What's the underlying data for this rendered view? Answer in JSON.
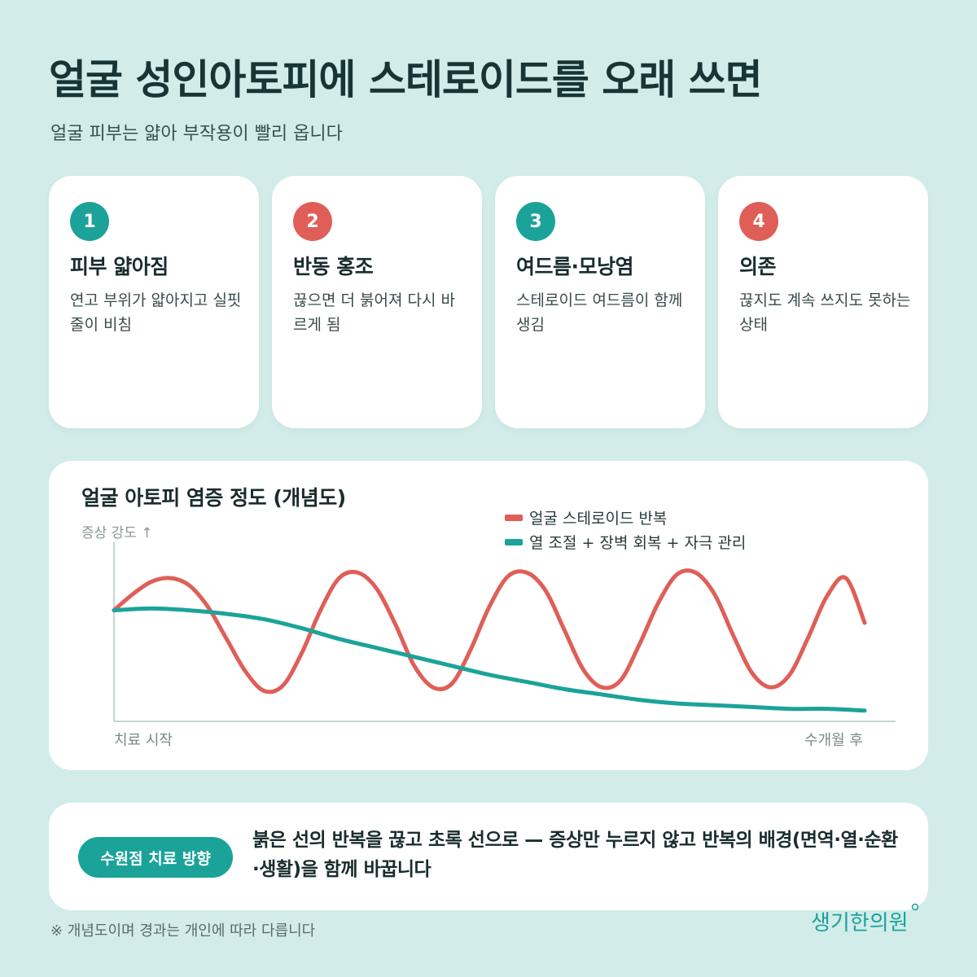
{
  "header": {
    "title": "얼굴 성인아토피에 스테로이드를 오래 쓰면",
    "subtitle": "얼굴 피부는 얇아 부작용이 빨리 옵니다"
  },
  "cards": [
    {
      "number": "1",
      "title": "피부 얇아짐",
      "desc": "연고 부위가 얇아지고 실핏줄이 비침",
      "color": "#1ba399"
    },
    {
      "number": "2",
      "title": "반동 홍조",
      "desc": "끊으면 더 붉어져 다시 바르게 됨",
      "color": "#df5f58"
    },
    {
      "number": "3",
      "title": "여드름·모낭염",
      "desc": "스테로이드 여드름이 함께 생김",
      "color": "#1ba399"
    },
    {
      "number": "4",
      "title": "의존",
      "desc": "끊지도 계속 쓰지도 못하는 상태",
      "color": "#df5f58"
    }
  ],
  "chart_panel": {
    "title": "얼굴 아토피 염증 정도 (개념도)"
  },
  "chart_data": {
    "type": "line",
    "title": "얼굴 아토피 염증 정도 (개념도)",
    "ylabel": "증상 강도 ↑",
    "x_start_label": "치료 시작",
    "x_end_label": "수개월 후",
    "ylim": [
      0,
      1
    ],
    "series": [
      {
        "name": "얼굴 스테로이드 반복",
        "color": "#df5f58",
        "x": [
          0,
          0.025,
          0.05,
          0.075,
          0.1,
          0.125,
          0.15,
          0.175,
          0.2,
          0.225,
          0.25,
          0.275,
          0.3,
          0.325,
          0.35,
          0.375,
          0.4,
          0.425,
          0.45,
          0.475,
          0.5,
          0.525,
          0.55,
          0.575,
          0.6,
          0.625,
          0.65,
          0.675,
          0.7,
          0.725,
          0.75,
          0.775,
          0.8,
          0.825,
          0.85,
          0.875,
          0.9,
          0.925,
          0.95,
          0.975,
          1.0
        ],
        "values": [
          0.62,
          0.71,
          0.78,
          0.8,
          0.76,
          0.64,
          0.46,
          0.28,
          0.17,
          0.2,
          0.38,
          0.62,
          0.8,
          0.83,
          0.74,
          0.54,
          0.31,
          0.19,
          0.21,
          0.4,
          0.64,
          0.81,
          0.83,
          0.73,
          0.51,
          0.29,
          0.19,
          0.23,
          0.43,
          0.66,
          0.82,
          0.83,
          0.71,
          0.48,
          0.27,
          0.19,
          0.26,
          0.47,
          0.7,
          0.8,
          0.55
        ]
      },
      {
        "name": "열 조절 + 장벽 회복 + 자극 관리",
        "color": "#1ba399",
        "x": [
          0,
          0.05,
          0.1,
          0.15,
          0.2,
          0.25,
          0.3,
          0.35,
          0.4,
          0.45,
          0.5,
          0.55,
          0.6,
          0.65,
          0.7,
          0.75,
          0.8,
          0.85,
          0.9,
          0.95,
          1.0
        ],
        "values": [
          0.62,
          0.63,
          0.62,
          0.6,
          0.57,
          0.52,
          0.46,
          0.41,
          0.36,
          0.31,
          0.26,
          0.22,
          0.18,
          0.15,
          0.12,
          0.1,
          0.09,
          0.08,
          0.07,
          0.07,
          0.06
        ]
      }
    ],
    "grid": false,
    "legend": "top-right"
  },
  "note": {
    "pill": "수원점 치료 방향",
    "text": "붉은 선의 반복을 끊고 초록 선으로 — 증상만 누르지 않고 반복의 배경(면역·열·순환·생활)을 함께 바꿉니다"
  },
  "footnote": "※ 개념도이며 경과는 개인에 따라 다릅니다",
  "logo": {
    "text": "생기한의원"
  },
  "colors": {
    "background": "#d2ecea",
    "teal": "#1ba399",
    "red": "#df5f58"
  }
}
